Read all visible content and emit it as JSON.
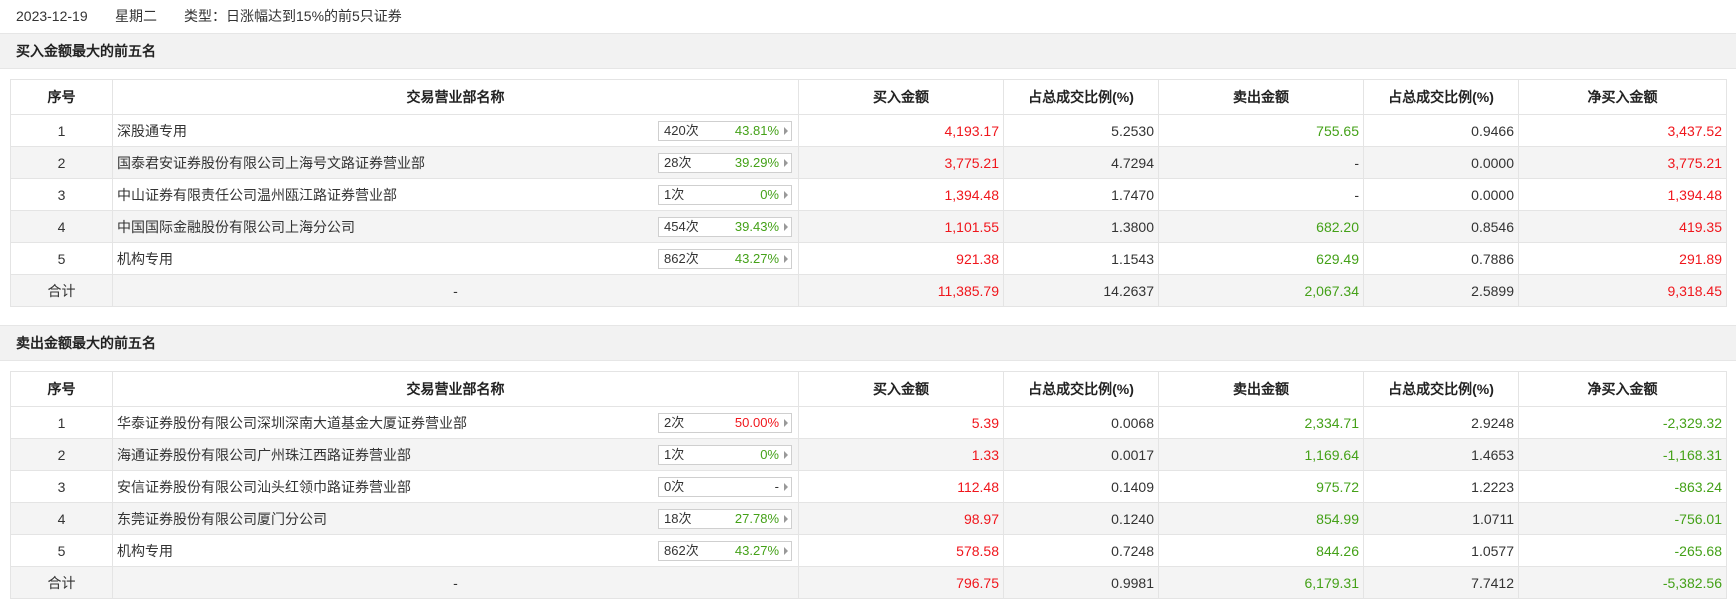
{
  "header": {
    "date": "2023-12-19",
    "weekday": "星期二",
    "type": "类型：日涨幅达到15%的前5只证券"
  },
  "columns": [
    "序号",
    "交易营业部名称",
    "买入金额",
    "占总成交比例(%)",
    "卖出金额",
    "占总成交比例(%)",
    "净买入金额"
  ],
  "buy_section": {
    "title": "买入金额最大的前五名",
    "rows": [
      {
        "no": "1",
        "name": "深股通专用",
        "times": "420次",
        "rate": "43.81%",
        "rate_color": "green",
        "buy": "4,193.17",
        "buy_pct": "5.2530",
        "sell": "755.65",
        "sell_pct": "0.9466",
        "net": "3,437.52",
        "net_color": "red",
        "sell_color": "green"
      },
      {
        "no": "2",
        "name": "国泰君安证券股份有限公司上海号文路证券营业部",
        "times": "28次",
        "rate": "39.29%",
        "rate_color": "green",
        "buy": "3,775.21",
        "buy_pct": "4.7294",
        "sell": "-",
        "sell_pct": "0.0000",
        "net": "3,775.21",
        "net_color": "red",
        "sell_color": "plain"
      },
      {
        "no": "3",
        "name": "中山证券有限责任公司温州瓯江路证券营业部",
        "times": "1次",
        "rate": "0%",
        "rate_color": "green",
        "buy": "1,394.48",
        "buy_pct": "1.7470",
        "sell": "-",
        "sell_pct": "0.0000",
        "net": "1,394.48",
        "net_color": "red",
        "sell_color": "plain"
      },
      {
        "no": "4",
        "name": "中国国际金融股份有限公司上海分公司",
        "times": "454次",
        "rate": "39.43%",
        "rate_color": "green",
        "buy": "1,101.55",
        "buy_pct": "1.3800",
        "sell": "682.20",
        "sell_pct": "0.8546",
        "net": "419.35",
        "net_color": "red",
        "sell_color": "green"
      },
      {
        "no": "5",
        "name": "机构专用",
        "times": "862次",
        "rate": "43.27%",
        "rate_color": "green",
        "buy": "921.38",
        "buy_pct": "1.1543",
        "sell": "629.49",
        "sell_pct": "0.7886",
        "net": "291.89",
        "net_color": "red",
        "sell_color": "green"
      }
    ],
    "total": {
      "label": "合计",
      "name": "-",
      "buy": "11,385.79",
      "buy_pct": "14.2637",
      "sell": "2,067.34",
      "sell_pct": "2.5899",
      "net": "9,318.45",
      "net_color": "red"
    }
  },
  "sell_section": {
    "title": "卖出金额最大的前五名",
    "rows": [
      {
        "no": "1",
        "name": "华泰证券股份有限公司深圳深南大道基金大厦证券营业部",
        "times": "2次",
        "rate": "50.00%",
        "rate_color": "red",
        "buy": "5.39",
        "buy_pct": "0.0068",
        "sell": "2,334.71",
        "sell_pct": "2.9248",
        "net": "-2,329.32",
        "net_color": "green",
        "sell_color": "green"
      },
      {
        "no": "2",
        "name": "海通证券股份有限公司广州珠江西路证券营业部",
        "times": "1次",
        "rate": "0%",
        "rate_color": "green",
        "buy": "1.33",
        "buy_pct": "0.0017",
        "sell": "1,169.64",
        "sell_pct": "1.4653",
        "net": "-1,168.31",
        "net_color": "green",
        "sell_color": "green"
      },
      {
        "no": "3",
        "name": "安信证券股份有限公司汕头红领巾路证券营业部",
        "times": "0次",
        "rate": "-",
        "rate_color": "plain",
        "buy": "112.48",
        "buy_pct": "0.1409",
        "sell": "975.72",
        "sell_pct": "1.2223",
        "net": "-863.24",
        "net_color": "green",
        "sell_color": "green"
      },
      {
        "no": "4",
        "name": "东莞证券股份有限公司厦门分公司",
        "times": "18次",
        "rate": "27.78%",
        "rate_color": "green",
        "buy": "98.97",
        "buy_pct": "0.1240",
        "sell": "854.99",
        "sell_pct": "1.0711",
        "net": "-756.01",
        "net_color": "green",
        "sell_color": "green"
      },
      {
        "no": "5",
        "name": "机构专用",
        "times": "862次",
        "rate": "43.27%",
        "rate_color": "green",
        "buy": "578.58",
        "buy_pct": "0.7248",
        "sell": "844.26",
        "sell_pct": "1.0577",
        "net": "-265.68",
        "net_color": "green",
        "sell_color": "green"
      }
    ],
    "total": {
      "label": "合计",
      "name": "-",
      "buy": "796.75",
      "buy_pct": "0.9981",
      "sell": "6,179.31",
      "sell_pct": "7.7412",
      "net": "-5,382.56",
      "net_color": "green"
    }
  },
  "colors": {
    "red": "#f0161c",
    "green": "#44a118",
    "header_bg": "#f2f2f2",
    "stripe_bg": "#f4f4f4"
  }
}
